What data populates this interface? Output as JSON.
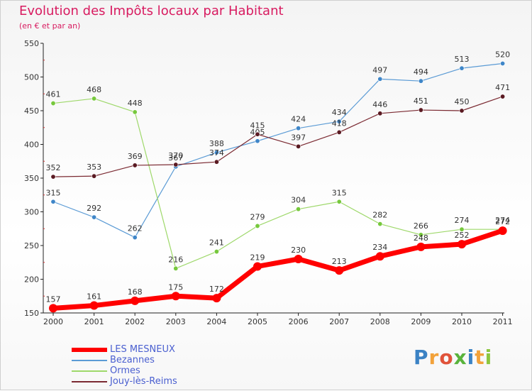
{
  "header": {
    "title": "Evolution des Impôts locaux par Habitant",
    "subtitle": "(en € et par an)"
  },
  "brand": {
    "logo_letters": [
      {
        "ch": "P",
        "color": "#3b82c4"
      },
      {
        "ch": "r",
        "color": "#f2a23a"
      },
      {
        "ch": "o",
        "color": "#e0533a"
      },
      {
        "ch": "x",
        "color": "#59b33c"
      },
      {
        "ch": "i",
        "color": "#3b82c4"
      },
      {
        "ch": "t",
        "color": "#f2a23a"
      },
      {
        "ch": "i",
        "color": "#8cc63f"
      }
    ]
  },
  "chart_data": {
    "type": "line",
    "title": "Evolution des Impôts locaux par Habitant",
    "subtitle": "(en € et par an)",
    "x": [
      2000,
      2001,
      2002,
      2003,
      2004,
      2005,
      2006,
      2007,
      2008,
      2009,
      2010,
      2011
    ],
    "ylim": [
      150,
      550
    ],
    "yticks": [
      150,
      200,
      250,
      300,
      350,
      400,
      450,
      500,
      550
    ],
    "grid": false,
    "legend_position": "bottom-left",
    "series": [
      {
        "name": "Bezannes",
        "color": "#5b9bd5",
        "dot": "#3f86c8",
        "values": [
          315,
          292,
          262,
          367,
          388,
          405,
          424,
          434,
          497,
          494,
          513,
          520
        ]
      },
      {
        "name": "Ormes",
        "color": "#9ed86a",
        "dot": "#76c83c",
        "values": [
          461,
          468,
          448,
          216,
          241,
          279,
          304,
          315,
          282,
          266,
          274,
          274
        ]
      },
      {
        "name": "Jouy-lès-Reims",
        "color": "#7b2a32",
        "dot": "#5a1a22",
        "values": [
          352,
          353,
          369,
          370,
          374,
          415,
          397,
          418,
          446,
          451,
          450,
          471
        ]
      },
      {
        "name": "LES MESNEUX",
        "color": "#ff0000",
        "dot": "#ff0000",
        "highlight": true,
        "values": [
          157,
          161,
          168,
          175,
          172,
          219,
          230,
          213,
          234,
          248,
          252,
          272
        ]
      }
    ],
    "legend_order": [
      "LES MESNEUX",
      "Bezannes",
      "Ormes",
      "Jouy-lès-Reims"
    ]
  }
}
